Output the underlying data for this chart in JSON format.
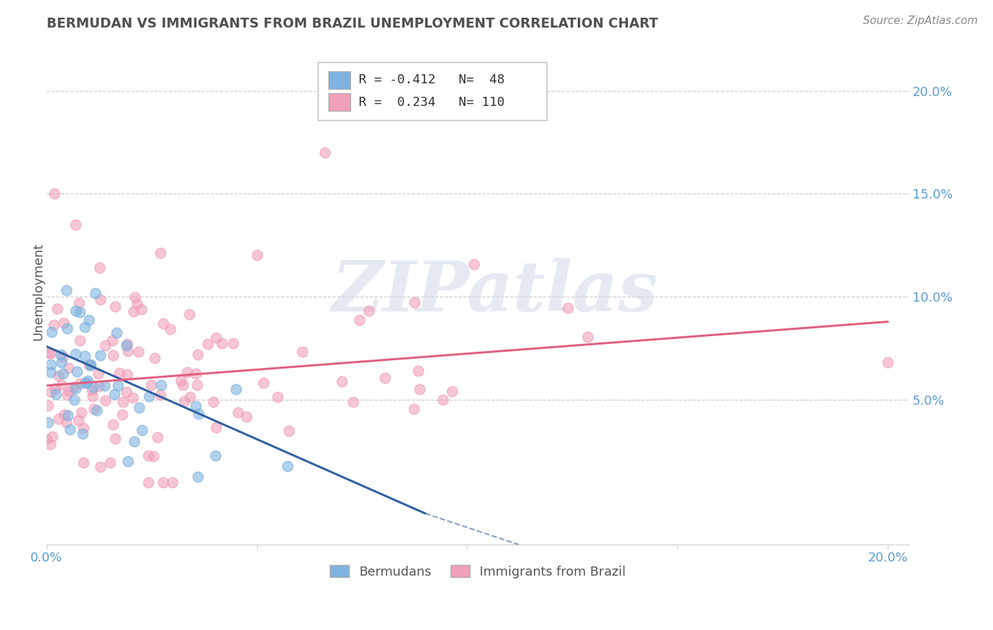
{
  "title": "BERMUDAN VS IMMIGRANTS FROM BRAZIL UNEMPLOYMENT CORRELATION CHART",
  "source_text": "Source: ZipAtlas.com",
  "ylabel": "Unemployment",
  "xlim": [
    0.0,
    0.205
  ],
  "ylim": [
    -0.02,
    0.225
  ],
  "ytick_vals": [
    0.05,
    0.1,
    0.15,
    0.2
  ],
  "ytick_labels": [
    "5.0%",
    "10.0%",
    "15.0%",
    "20.0%"
  ],
  "xtick_vals": [
    0.0,
    0.05,
    0.1,
    0.15,
    0.2
  ],
  "xtick_labels": [
    "0.0%",
    "",
    "",
    "",
    "20.0%"
  ],
  "legend_line1": "R = -0.412   N=  48",
  "legend_line2": "R =  0.234   N= 110",
  "color_blue": "#7EB3E0",
  "color_pink": "#F0A0B8",
  "line_blue": "#3060A0",
  "line_pink": "#E06080",
  "tick_color": "#5B9BD5",
  "watermark_text": "ZIPatlas",
  "background_color": "#ffffff",
  "grid_color": "#cccccc",
  "title_color": "#505050",
  "source_color": "#888888",
  "blue_line_x0": 0.0,
  "blue_line_y0": 0.076,
  "blue_line_x1": 0.09,
  "blue_line_y1": -0.005,
  "blue_line_dash_x1": 0.115,
  "blue_line_dash_y1": -0.022,
  "pink_line_x0": 0.0,
  "pink_line_y0": 0.057,
  "pink_line_x1": 0.2,
  "pink_line_y1": 0.088
}
